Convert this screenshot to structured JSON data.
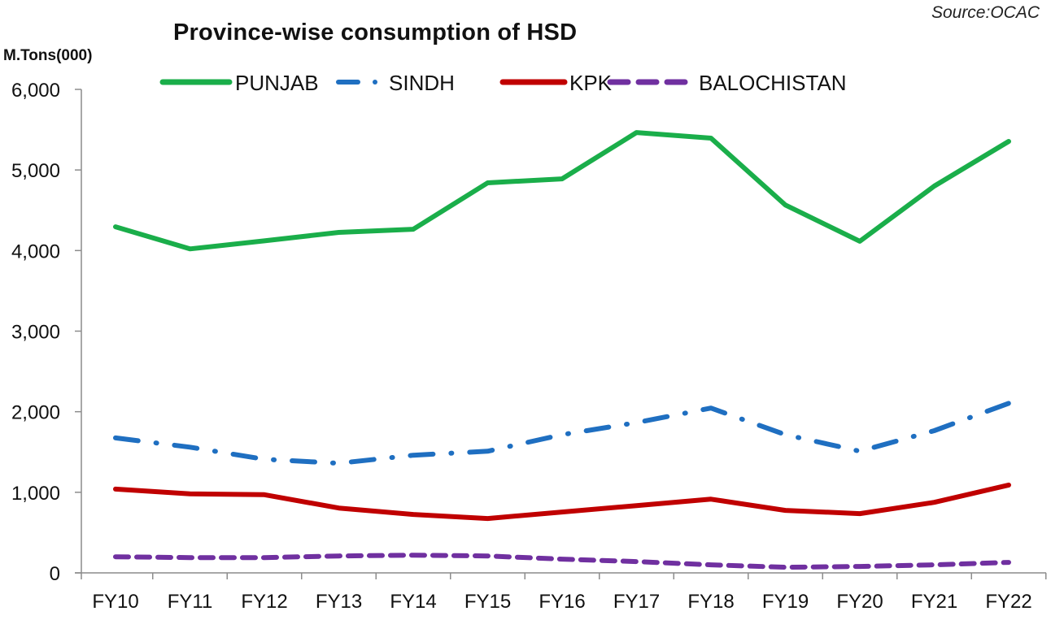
{
  "source_label": "Source:OCAC",
  "chart_data": {
    "type": "line",
    "title": "Province-wise consumption of HSD",
    "ylabel": "M.Tons(000)",
    "xlabel": "",
    "ylim": [
      0,
      6000
    ],
    "yticks": [
      0,
      1000,
      2000,
      3000,
      4000,
      5000,
      6000
    ],
    "ytick_labels": [
      "0",
      "1,000",
      "2,000",
      "3,000",
      "4,000",
      "5,000",
      "6,000"
    ],
    "grid": false,
    "legend_position": "top",
    "categories": [
      "FY10",
      "FY11",
      "FY12",
      "FY13",
      "FY14",
      "FY15",
      "FY16",
      "FY17",
      "FY18",
      "FY19",
      "FY20",
      "FY21",
      "FY22"
    ],
    "series": [
      {
        "name": "PUNJAB",
        "color": "#1aae4a",
        "style": "solid",
        "values": [
          4295,
          4020,
          4120,
          4225,
          4265,
          4840,
          4890,
          5465,
          5395,
          4565,
          4115,
          4800,
          5355
        ]
      },
      {
        "name": "SINDH",
        "color": "#1f6fc1",
        "style": "dash-dot",
        "values": [
          1675,
          1560,
          1410,
          1360,
          1460,
          1510,
          1715,
          1865,
          2045,
          1715,
          1510,
          1765,
          2105
        ]
      },
      {
        "name": "KPK",
        "color": "#c00000",
        "style": "solid",
        "values": [
          1040,
          980,
          970,
          805,
          725,
          675,
          755,
          835,
          915,
          775,
          735,
          875,
          1090
        ]
      },
      {
        "name": "BALOCHISTAN",
        "color": "#7030a0",
        "style": "dashed",
        "values": [
          200,
          190,
          190,
          210,
          220,
          210,
          170,
          140,
          100,
          70,
          80,
          100,
          130
        ]
      }
    ]
  }
}
